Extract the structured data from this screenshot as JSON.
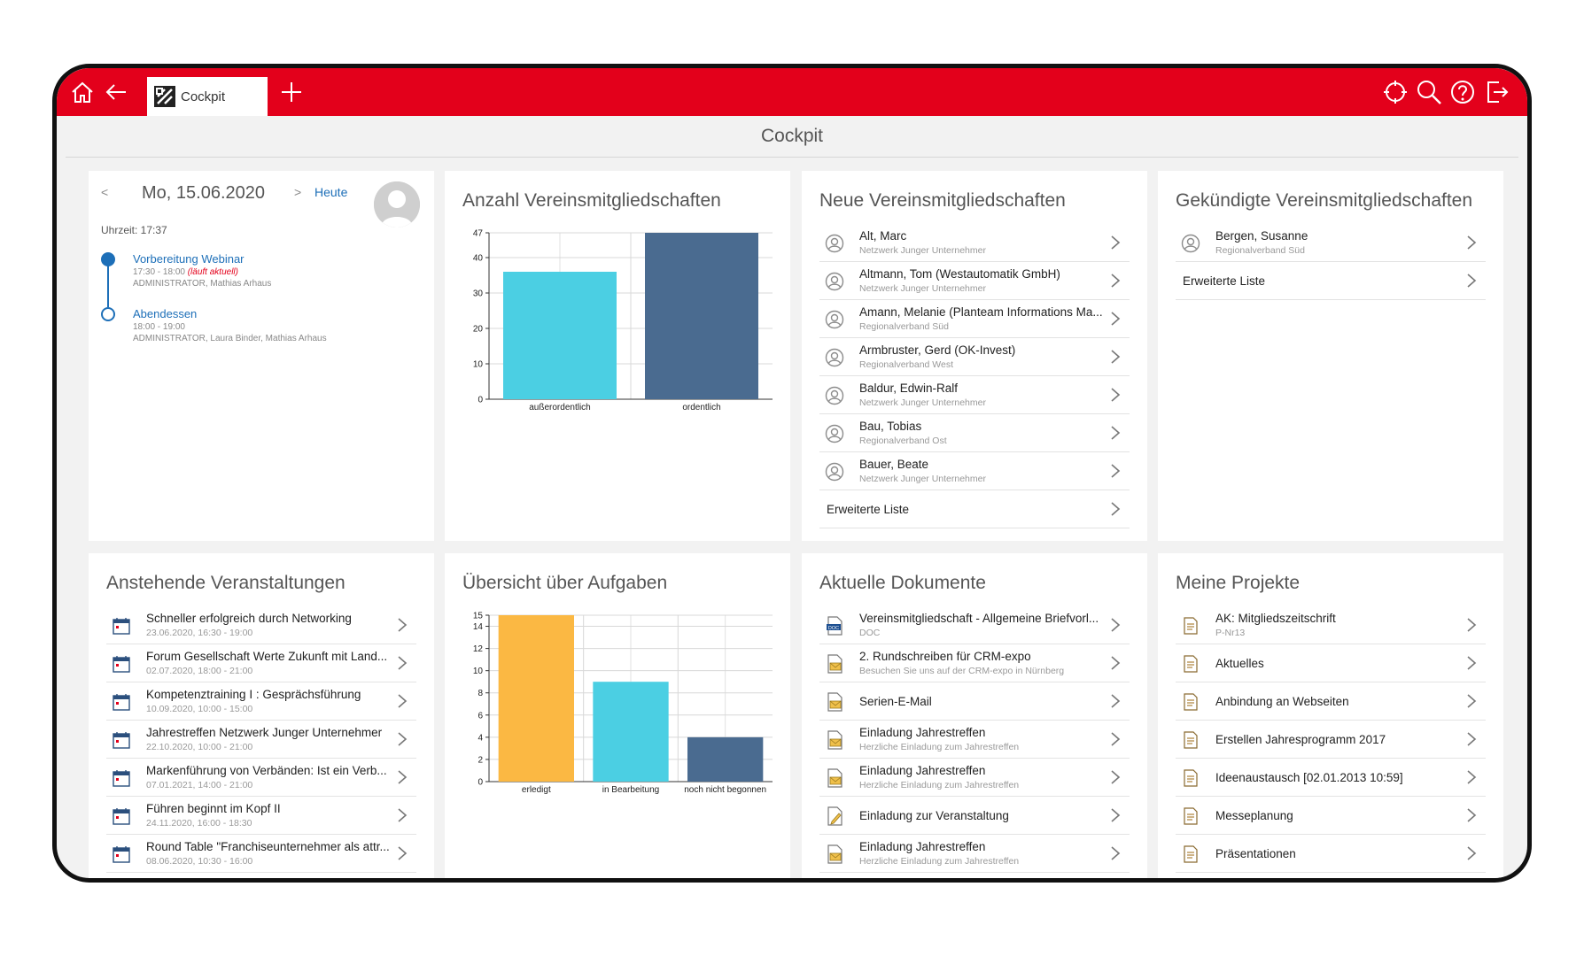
{
  "topbar": {
    "tab_label": "Cockpit"
  },
  "page_title": "Cockpit",
  "calendar": {
    "prev": "<",
    "next": ">",
    "date": "Mo, 15.06.2020",
    "today_label": "Heute",
    "time_label": "Uhrzeit: 17:37",
    "events": [
      {
        "title": "Vorbereitung Webinar",
        "time": "17:30 - 18:00",
        "status": "(läuft aktuell)",
        "people": "ADMINISTRATOR, Mathias Arhaus"
      },
      {
        "title": "Abendessen",
        "time": "18:00 - 19:00",
        "status": "",
        "people": "ADMINISTRATOR, Laura Binder, Mathias Arhaus"
      }
    ]
  },
  "membership_chart": {
    "title": "Anzahl Vereinsmitgliedschaften",
    "chart_data": {
      "type": "bar",
      "categories": [
        "außerordentlich",
        "ordentlich"
      ],
      "values": [
        36,
        47
      ],
      "ylim": [
        0,
        47
      ],
      "yticks": [
        "0",
        "10",
        "20",
        "30",
        "40",
        "47"
      ],
      "colors": [
        "#4bcfe3",
        "#4a6b90"
      ]
    }
  },
  "new_members": {
    "title": "Neue Vereinsmitgliedschaften",
    "rows": [
      {
        "name": "Alt, Marc",
        "org": "Netzwerk Junger Unternehmer"
      },
      {
        "name": "Altmann, Tom (Westautomatik GmbH)",
        "org": "Netzwerk Junger Unternehmer"
      },
      {
        "name": "Amann, Melanie (Planteam Informations Ma...",
        "org": "Regionalverband Süd"
      },
      {
        "name": "Armbruster, Gerd (OK-Invest)",
        "org": "Regionalverband West"
      },
      {
        "name": "Baldur, Edwin-Ralf",
        "org": "Netzwerk Junger Unternehmer"
      },
      {
        "name": "Bau, Tobias",
        "org": "Regionalverband Ost"
      },
      {
        "name": "Bauer, Beate",
        "org": "Netzwerk Junger Unternehmer"
      }
    ],
    "more": "Erweiterte Liste"
  },
  "cancelled_members": {
    "title": "Gekündigte Vereinsmitgliedschaften",
    "rows": [
      {
        "name": "Bergen, Susanne",
        "org": "Regionalverband Süd"
      }
    ],
    "more": "Erweiterte Liste"
  },
  "events_card": {
    "title": "Anstehende Veranstaltungen",
    "rows": [
      {
        "name": "Schneller erfolgreich durch Networking",
        "date": "23.06.2020, 16:30 - 19:00"
      },
      {
        "name": "Forum Gesellschaft Werte Zukunft mit Land...",
        "date": "02.07.2020, 18:00 - 21:00"
      },
      {
        "name": "Kompetenztraining I : Gesprächsführung",
        "date": "10.09.2020, 10:00 - 15:00"
      },
      {
        "name": "Jahrestreffen Netzwerk Junger Unternehmer",
        "date": "22.10.2020, 10:00 - 21:00"
      },
      {
        "name": "Markenführung von Verbänden: Ist ein Verb...",
        "date": "07.01.2021, 14:00 - 21:00"
      },
      {
        "name": "Führen beginnt im Kopf II",
        "date": "24.11.2020, 16:00 - 18:30"
      },
      {
        "name": "Round Table \"Franchiseunternehmer als attr...",
        "date": "08.06.2020, 10:30 - 16:00"
      }
    ]
  },
  "tasks_chart": {
    "title": "Übersicht über Aufgaben",
    "chart_data": {
      "type": "bar",
      "categories": [
        "erledigt",
        "in Bearbeitung",
        "noch nicht begonnen"
      ],
      "values": [
        15,
        9,
        4
      ],
      "ylim": [
        0,
        15
      ],
      "yticks": [
        "0",
        "2",
        "4",
        "6",
        "8",
        "10",
        "12",
        "14",
        "15"
      ],
      "colors": [
        "#fbb843",
        "#4bcfe3",
        "#4a6b90"
      ]
    }
  },
  "documents": {
    "title": "Aktuelle Dokumente",
    "rows": [
      {
        "name": "Vereinsmitgliedschaft - Allgemeine Briefvorl...",
        "sub": "DOC",
        "icon": "doc-icon"
      },
      {
        "name": "2. Rundschreiben für CRM-expo",
        "sub": "Besuchen Sie uns auf der CRM-expo in Nürnberg",
        "icon": "mail-icon"
      },
      {
        "name": "Serien-E-Mail",
        "sub": "",
        "icon": "mail-icon"
      },
      {
        "name": "Einladung Jahrestreffen",
        "sub": "Herzliche Einladung zum Jahrestreffen",
        "icon": "mail-icon"
      },
      {
        "name": "Einladung Jahrestreffen",
        "sub": "Herzliche Einladung zum Jahrestreffen",
        "icon": "mail-icon"
      },
      {
        "name": "Einladung zur Veranstaltung",
        "sub": "",
        "icon": "edit-doc-icon"
      },
      {
        "name": "Einladung Jahrestreffen",
        "sub": "Herzliche Einladung zum Jahrestreffen",
        "icon": "mail-icon"
      }
    ]
  },
  "projects": {
    "title": "Meine Projekte",
    "rows": [
      {
        "name": "AK: Mitgliedszeitschrift",
        "sub": "P-Nr13"
      },
      {
        "name": "Aktuelles",
        "sub": ""
      },
      {
        "name": "Anbindung an Webseiten",
        "sub": ""
      },
      {
        "name": "Erstellen Jahresprogramm 2017",
        "sub": ""
      },
      {
        "name": "Ideenaustausch [02.01.2013 10:59]",
        "sub": ""
      },
      {
        "name": "Messeplanung",
        "sub": ""
      },
      {
        "name": "Präsentationen",
        "sub": ""
      }
    ]
  }
}
